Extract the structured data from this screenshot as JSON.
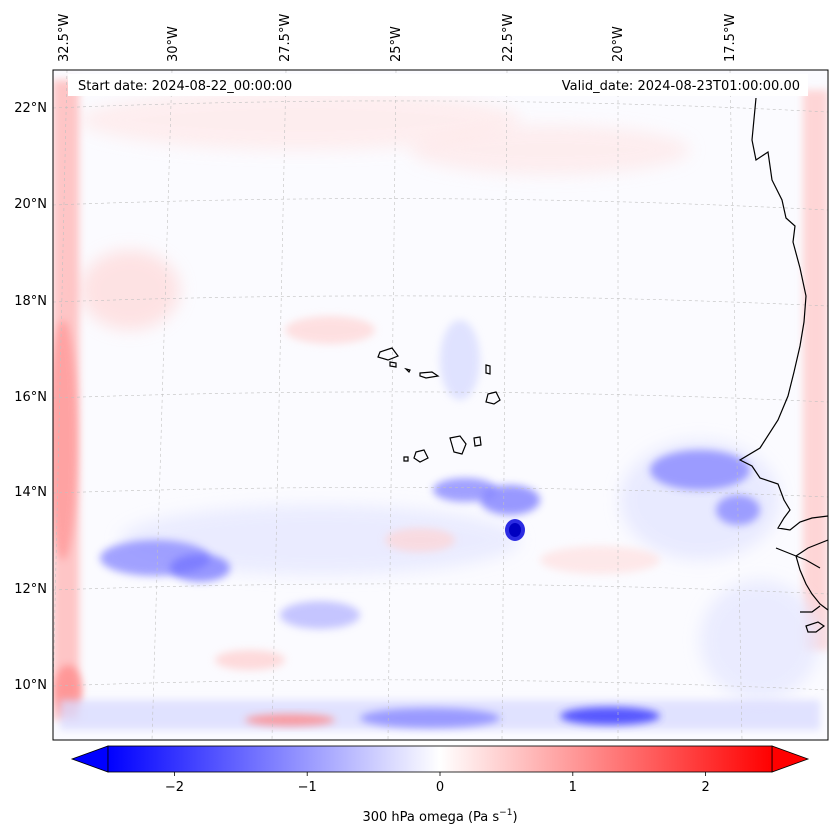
{
  "map": {
    "start_date": "Start date: 2024-08-22_00:00:00",
    "valid_date": "Valid_date: 2024-08-23T01:00:00.00",
    "lon_labels": [
      "32.5°W",
      "30°W",
      "27.5°W",
      "25°W",
      "22.5°W",
      "20°W",
      "17.5°W"
    ],
    "lat_labels": [
      "22°N",
      "20°N",
      "18°N",
      "16°N",
      "14°N",
      "12°N",
      "10°N"
    ]
  },
  "colorbar": {
    "label": "300 hPa omega (Pa s",
    "label_exp": "−1",
    "label_close": ")",
    "ticks": [
      {
        "value": -2,
        "label": "−2"
      },
      {
        "value": -1,
        "label": "−1"
      },
      {
        "value": 0,
        "label": "0"
      },
      {
        "value": 1,
        "label": "1"
      },
      {
        "value": 2,
        "label": "2"
      }
    ],
    "vmin": -2.5,
    "vmax": 2.5,
    "colormap": "bwr",
    "color_low": "#0000ff",
    "color_mid": "#ffffff",
    "color_high": "#ff0000"
  },
  "colors": {
    "coastline": "#000000",
    "gridline": "#c0c0c0",
    "frame": "#000000"
  }
}
